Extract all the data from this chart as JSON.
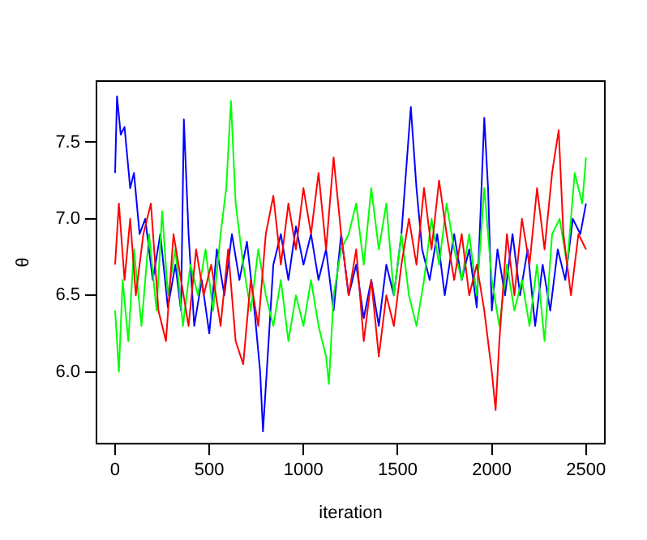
{
  "chart_data": {
    "type": "line",
    "xlabel": "iteration",
    "ylabel": "θ",
    "xlim": [
      -99,
      2600
    ],
    "ylim": [
      5.53,
      7.9
    ],
    "xticks": [
      0,
      500,
      1000,
      1500,
      2000,
      2500
    ],
    "yticks": [
      {
        "value": 6,
        "label": "6.0"
      },
      6.5,
      {
        "value": 7,
        "label": "7.0"
      },
      7.5
    ],
    "grid": false,
    "legend": false,
    "marker": "none",
    "line_style": "solid",
    "series": [
      {
        "color": "#ff0000",
        "x": [
          0,
          20,
          50,
          80,
          110,
          150,
          190,
          230,
          270,
          310,
          350,
          390,
          430,
          470,
          510,
          560,
          600,
          640,
          680,
          720,
          760,
          800,
          840,
          880,
          920,
          960,
          1000,
          1040,
          1080,
          1120,
          1160,
          1200,
          1240,
          1280,
          1320,
          1360,
          1400,
          1440,
          1480,
          1520,
          1560,
          1600,
          1640,
          1680,
          1720,
          1760,
          1800,
          1840,
          1880,
          1920,
          1960,
          2000,
          2020,
          2040,
          2080,
          2120,
          2160,
          2200,
          2240,
          2280,
          2320,
          2355,
          2380,
          2420,
          2460,
          2500
        ],
        "values": [
          6.7,
          7.1,
          6.6,
          7.0,
          6.5,
          6.9,
          7.1,
          6.4,
          6.2,
          6.9,
          6.6,
          6.3,
          6.8,
          6.5,
          6.7,
          6.3,
          6.8,
          6.2,
          6.05,
          6.6,
          6.3,
          6.9,
          7.15,
          6.7,
          7.1,
          6.8,
          7.2,
          6.9,
          7.3,
          6.8,
          7.4,
          6.9,
          6.5,
          6.8,
          6.2,
          6.6,
          6.1,
          6.5,
          6.3,
          6.7,
          7.0,
          6.7,
          7.2,
          6.8,
          7.25,
          6.9,
          6.6,
          6.9,
          6.5,
          6.7,
          6.4,
          6.0,
          5.75,
          6.2,
          6.9,
          6.5,
          7.0,
          6.7,
          7.2,
          6.8,
          7.3,
          7.58,
          6.9,
          6.5,
          6.9,
          6.8
        ]
      },
      {
        "color": "#00ff00",
        "x": [
          0,
          20,
          40,
          70,
          100,
          140,
          180,
          220,
          250,
          280,
          320,
          360,
          400,
          440,
          480,
          520,
          560,
          590,
          615,
          640,
          680,
          720,
          760,
          800,
          840,
          880,
          920,
          960,
          1000,
          1040,
          1080,
          1120,
          1135,
          1160,
          1200,
          1240,
          1280,
          1320,
          1360,
          1400,
          1440,
          1480,
          1520,
          1560,
          1600,
          1640,
          1680,
          1720,
          1760,
          1800,
          1840,
          1880,
          1920,
          1960,
          2000,
          2040,
          2080,
          2120,
          2160,
          2200,
          2240,
          2280,
          2320,
          2360,
          2400,
          2440,
          2480,
          2500
        ],
        "values": [
          6.4,
          6.0,
          6.6,
          6.2,
          6.8,
          6.3,
          6.9,
          6.4,
          7.05,
          6.5,
          6.8,
          6.3,
          6.7,
          6.5,
          6.8,
          6.4,
          6.9,
          7.2,
          7.77,
          7.1,
          6.7,
          6.4,
          6.8,
          6.5,
          6.3,
          6.6,
          6.2,
          6.5,
          6.3,
          6.6,
          6.3,
          6.1,
          5.92,
          6.5,
          6.8,
          6.9,
          7.1,
          6.7,
          7.2,
          6.8,
          7.1,
          6.5,
          6.9,
          6.5,
          6.3,
          6.6,
          7.0,
          6.7,
          7.1,
          6.8,
          6.6,
          6.9,
          6.5,
          7.2,
          6.6,
          6.3,
          6.7,
          6.4,
          6.6,
          6.3,
          6.7,
          6.2,
          6.9,
          7.0,
          6.7,
          7.3,
          7.1,
          7.4
        ]
      },
      {
        "color": "#0000ff",
        "x": [
          0,
          10,
          30,
          50,
          80,
          100,
          130,
          160,
          200,
          240,
          280,
          320,
          350,
          365,
          390,
          420,
          460,
          500,
          540,
          580,
          620,
          660,
          700,
          740,
          770,
          785,
          810,
          840,
          880,
          920,
          960,
          1000,
          1040,
          1080,
          1120,
          1160,
          1200,
          1240,
          1280,
          1320,
          1360,
          1400,
          1440,
          1480,
          1520,
          1550,
          1570,
          1600,
          1630,
          1670,
          1710,
          1750,
          1800,
          1840,
          1880,
          1920,
          1960,
          1980,
          2000,
          2030,
          2070,
          2110,
          2150,
          2190,
          2230,
          2270,
          2310,
          2350,
          2390,
          2430,
          2470,
          2500
        ],
        "values": [
          7.3,
          7.8,
          7.55,
          7.6,
          7.2,
          7.3,
          6.9,
          7.0,
          6.6,
          6.9,
          6.42,
          6.7,
          6.4,
          7.65,
          6.9,
          6.3,
          6.6,
          6.25,
          6.8,
          6.5,
          6.9,
          6.6,
          6.85,
          6.4,
          6.0,
          5.61,
          6.1,
          6.7,
          6.9,
          6.6,
          6.95,
          6.7,
          6.9,
          6.6,
          6.8,
          6.4,
          6.9,
          6.5,
          6.7,
          6.35,
          6.6,
          6.3,
          6.7,
          6.5,
          6.9,
          7.4,
          7.73,
          7.2,
          6.8,
          6.6,
          6.9,
          6.5,
          6.9,
          6.6,
          6.8,
          6.42,
          7.66,
          7.2,
          6.4,
          6.8,
          6.5,
          6.9,
          6.5,
          6.8,
          6.3,
          6.7,
          6.4,
          6.8,
          6.6,
          7.0,
          6.9,
          7.1
        ]
      }
    ]
  }
}
